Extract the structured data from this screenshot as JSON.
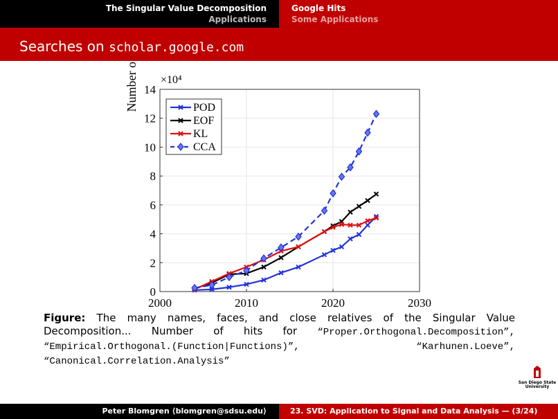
{
  "header": {
    "left_title": "The Singular Value Decomposition",
    "left_subtitle": "Applications",
    "right_title": "Google Hits",
    "right_subtitle": "Some Applications"
  },
  "frame_title": {
    "text": "Searches on ",
    "code": "scholar.google.com"
  },
  "chart_data": {
    "type": "line",
    "ylabel": "Number of Hits",
    "y_multiplier": "×10⁴",
    "x": [
      2004,
      2006,
      2008,
      2010,
      2012,
      2014,
      2016,
      2019,
      2020,
      2021,
      2022,
      2023,
      2024,
      2025
    ],
    "series": [
      {
        "name": "POD",
        "color": "#2233dd",
        "marker": "x",
        "dashed": false,
        "values": [
          0.1,
          0.15,
          0.3,
          0.5,
          0.8,
          1.3,
          1.7,
          2.55,
          2.85,
          3.1,
          3.65,
          3.95,
          4.6,
          5.2
        ]
      },
      {
        "name": "EOF",
        "color": "#000000",
        "marker": "x",
        "dashed": false,
        "values": [
          0.2,
          0.6,
          1.2,
          1.25,
          1.7,
          2.35,
          3.1,
          4.15,
          4.55,
          4.85,
          5.5,
          5.9,
          6.3,
          6.75
        ]
      },
      {
        "name": "KL",
        "color": "#e01010",
        "marker": "x",
        "dashed": false,
        "values": [
          0.15,
          0.7,
          1.25,
          1.7,
          2.2,
          2.8,
          3.1,
          4.15,
          4.45,
          4.65,
          4.6,
          4.6,
          4.9,
          5.1
        ]
      },
      {
        "name": "CCA",
        "color": "#2233dd",
        "marker": "diamond",
        "dashed": true,
        "values": [
          0.25,
          0.45,
          1.0,
          1.45,
          2.3,
          3.05,
          3.8,
          5.6,
          6.8,
          7.95,
          8.6,
          9.7,
          11.0,
          12.3
        ]
      }
    ],
    "xlim": [
      2000,
      2030
    ],
    "xticks": [
      2000,
      2010,
      2020,
      2030
    ],
    "ylim": [
      0,
      14
    ],
    "yticks": [
      0,
      2,
      4,
      6,
      8,
      10,
      12,
      14
    ],
    "grid": true,
    "legend": "top-left"
  },
  "caption": {
    "label": "Figure:",
    "text": "The many names, faces, and close relatives of the Singular Value Decomposition... Number of hits for",
    "terms": [
      "“Proper.Orthogonal.Decomposition”,",
      "“Empirical.Orthogonal.(Function|Functions)”,",
      "“Karhunen.Loeve”,",
      "“Canonical.Correlation.Analysis”"
    ]
  },
  "logo": {
    "line1": "San Diego State",
    "line2": "University"
  },
  "footer": {
    "left": "Peter Blomgren ⟨blomgren@sdsu.edu⟩",
    "right": "23. SVD: Application to Signal and Data Analysis — (3/24)"
  }
}
